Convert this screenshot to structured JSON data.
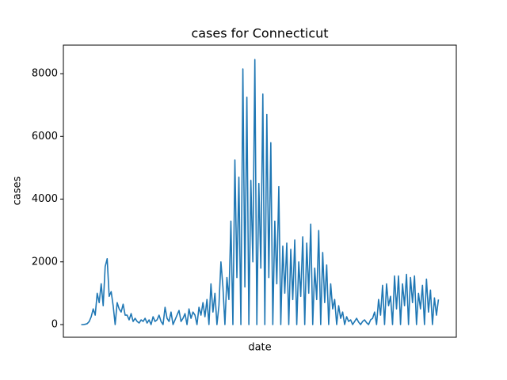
{
  "chart_data": {
    "type": "line",
    "title": "cases for Connecticut",
    "xlabel": "date",
    "ylabel": "cases",
    "color": "#1f77b4",
    "ylim": [
      -404,
      8910
    ],
    "yticks": [
      0,
      2000,
      4000,
      6000,
      8000
    ],
    "values": [
      0,
      0,
      10,
      30,
      100,
      250,
      500,
      300,
      1000,
      700,
      1300,
      600,
      1850,
      2100,
      900,
      1050,
      600,
      0,
      700,
      500,
      400,
      650,
      300,
      300,
      150,
      350,
      100,
      200,
      100,
      50,
      150,
      100,
      200,
      50,
      150,
      0,
      250,
      100,
      150,
      300,
      100,
      0,
      550,
      200,
      100,
      400,
      0,
      150,
      300,
      450,
      100,
      200,
      350,
      0,
      500,
      200,
      400,
      300,
      0,
      550,
      300,
      700,
      250,
      800,
      0,
      1300,
      400,
      1000,
      0,
      600,
      2000,
      1200,
      0,
      1500,
      800,
      3300,
      0,
      5250,
      1500,
      4700,
      0,
      8150,
      1200,
      7250,
      0,
      4600,
      2000,
      8450,
      0,
      4500,
      1800,
      7350,
      0,
      6700,
      1500,
      5800,
      0,
      3300,
      1300,
      4400,
      0,
      2500,
      1000,
      2600,
      0,
      2400,
      800,
      2700,
      0,
      2000,
      900,
      2800,
      0,
      2600,
      1000,
      3200,
      0,
      1800,
      800,
      3000,
      0,
      2300,
      700,
      1900,
      0,
      1300,
      500,
      800,
      0,
      600,
      200,
      400,
      0,
      250,
      100,
      150,
      0,
      100,
      200,
      80,
      0,
      100,
      150,
      60,
      0,
      150,
      200,
      400,
      0,
      800,
      300,
      1250,
      0,
      1300,
      600,
      900,
      0,
      1550,
      500,
      1550,
      0,
      1300,
      600,
      1600,
      0,
      1500,
      700,
      1550,
      0,
      1000,
      500,
      1250,
      0,
      1450,
      400,
      1100,
      0,
      850,
      300,
      800
    ]
  }
}
